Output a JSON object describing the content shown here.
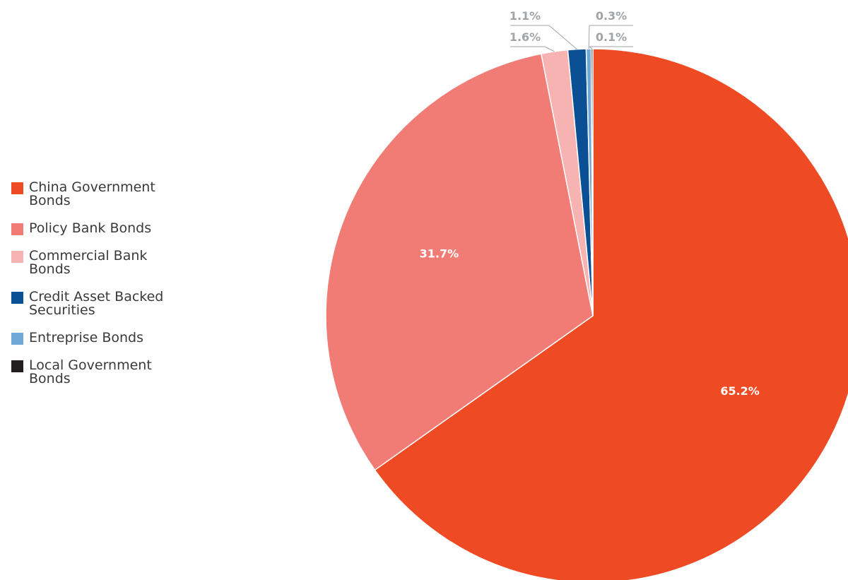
{
  "chart_data": {
    "type": "pie",
    "title": "",
    "legend_position": "left",
    "slices": [
      {
        "label": "China Government Bonds",
        "value": 65.2,
        "display": "65.2%",
        "color": "#ee4a24",
        "label_placement": "inside"
      },
      {
        "label": "Policy Bank Bonds",
        "value": 31.7,
        "display": "31.7%",
        "color": "#f17c76",
        "label_placement": "inside"
      },
      {
        "label": "Commercial Bank Bonds",
        "value": 1.6,
        "display": "1.6%",
        "color": "#f7b3b2",
        "label_placement": "outside"
      },
      {
        "label": "Credit Asset Backed Securities",
        "value": 1.1,
        "display": "1.1%",
        "color": "#0b4f95",
        "label_placement": "outside"
      },
      {
        "label": "Entreprise Bonds",
        "value": 0.3,
        "display": "0.3%",
        "color": "#6fa8d6",
        "label_placement": "outside"
      },
      {
        "label": "Local Government Bonds",
        "value": 0.1,
        "display": "0.1%",
        "color": "#231f20",
        "label_placement": "outside"
      }
    ]
  }
}
